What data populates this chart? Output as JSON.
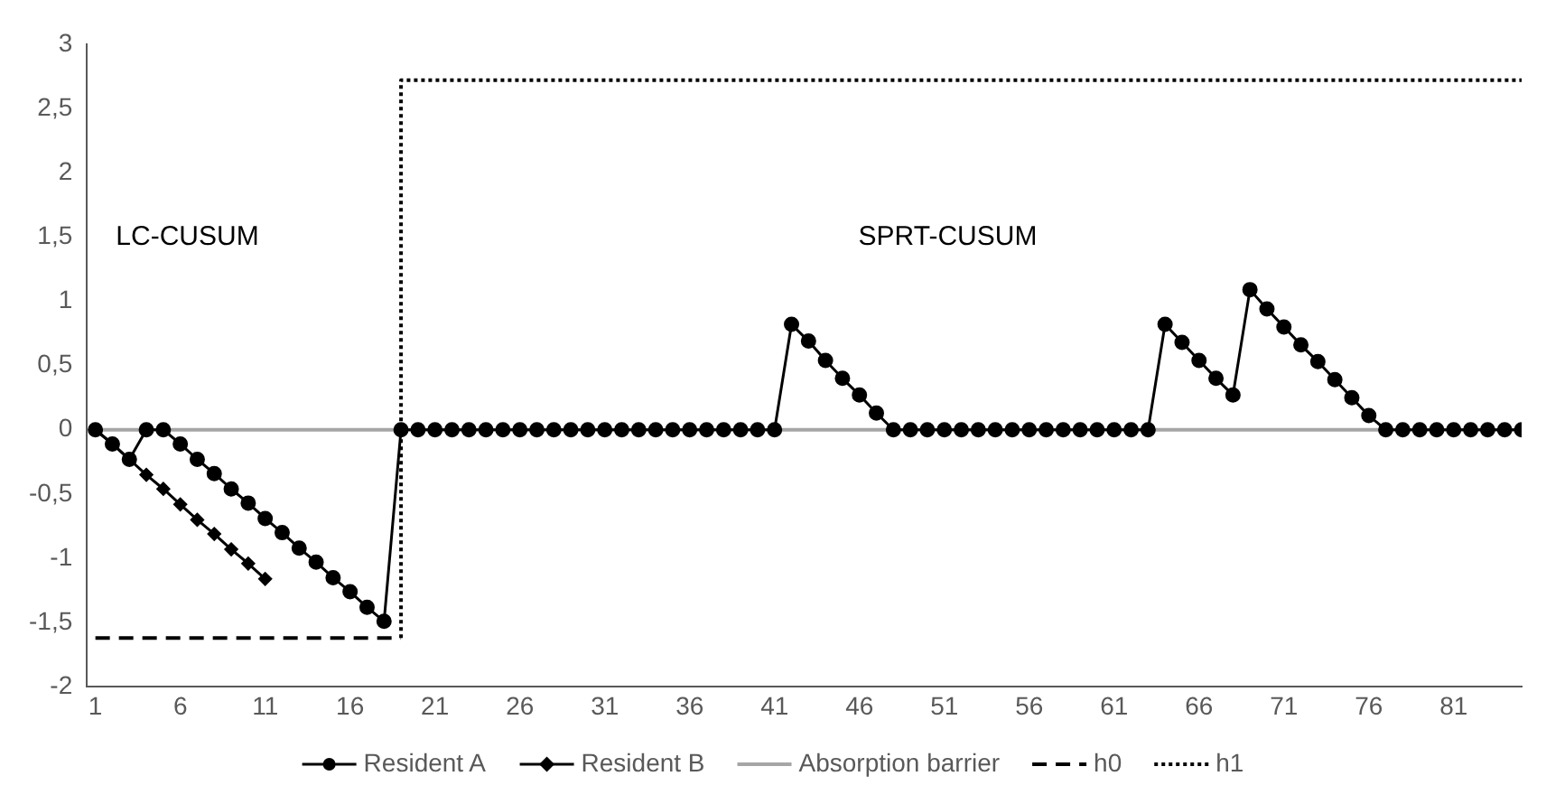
{
  "chart_data": {
    "type": "line",
    "x": [
      1,
      2,
      3,
      4,
      5,
      6,
      7,
      8,
      9,
      10,
      11,
      12,
      13,
      14,
      15,
      16,
      17,
      18,
      19,
      20,
      21,
      22,
      23,
      24,
      25,
      26,
      27,
      28,
      29,
      30,
      31,
      32,
      33,
      34,
      35,
      36,
      37,
      38,
      39,
      40,
      41,
      42,
      43,
      44,
      45,
      46,
      47,
      48,
      49,
      50,
      51,
      52,
      53,
      54,
      55,
      56,
      57,
      58,
      59,
      60,
      61,
      62,
      63,
      64,
      65,
      66,
      67,
      68,
      69,
      70,
      71,
      72,
      73,
      74,
      75,
      76,
      77,
      78,
      79,
      80,
      81,
      82,
      83,
      84,
      85
    ],
    "series": [
      {
        "name": "Resident A",
        "color": "#000000",
        "marker": "circle",
        "line_style": "solid",
        "values": [
          0,
          -0.11,
          -0.23,
          0,
          0,
          -0.11,
          -0.23,
          -0.34,
          -0.46,
          -0.57,
          -0.69,
          -0.8,
          -0.92,
          -1.03,
          -1.15,
          -1.26,
          -1.38,
          -1.49,
          0,
          0,
          0,
          0,
          0,
          0,
          0,
          0,
          0,
          0,
          0,
          0,
          0,
          0,
          0,
          0,
          0,
          0,
          0,
          0,
          0,
          0,
          0,
          0.82,
          0.69,
          0.54,
          0.4,
          0.27,
          0.13,
          0,
          0,
          0,
          0,
          0,
          0,
          0,
          0,
          0,
          0,
          0,
          0,
          0,
          0,
          0,
          0,
          0.82,
          0.68,
          0.54,
          0.4,
          0.27,
          1.09,
          0.94,
          0.8,
          0.66,
          0.53,
          0.39,
          0.25,
          0.11,
          0,
          0,
          0,
          0,
          0,
          0,
          0,
          0,
          0
        ]
      },
      {
        "name": "Resident B",
        "color": "#000000",
        "marker": "diamond",
        "line_style": "solid",
        "x": [
          1,
          2,
          3,
          4,
          5,
          6,
          7,
          8,
          9,
          10,
          11
        ],
        "values": [
          0,
          -0.11,
          -0.23,
          -0.35,
          -0.46,
          -0.58,
          -0.7,
          -0.81,
          -0.93,
          -1.04,
          -1.16
        ]
      },
      {
        "name": "Absorption barrier",
        "color": "#a6a6a6",
        "marker": "none",
        "line_style": "solid",
        "x": [
          1,
          85
        ],
        "values": [
          0,
          0
        ]
      },
      {
        "name": "h0",
        "color": "#000000",
        "marker": "none",
        "line_style": "dashed",
        "x": [
          1,
          19
        ],
        "values": [
          -1.62,
          -1.62
        ]
      },
      {
        "name": "h1",
        "color": "#000000",
        "marker": "none",
        "line_style": "dotted",
        "x": [
          19,
          19,
          85
        ],
        "values": [
          -1.62,
          2.72,
          2.72
        ]
      }
    ],
    "xlim": [
      0.5,
      85
    ],
    "xticks": [
      1,
      6,
      11,
      16,
      21,
      26,
      31,
      36,
      41,
      46,
      51,
      56,
      61,
      66,
      71,
      76,
      81
    ],
    "ylim": [
      -2,
      3
    ],
    "yticks": [
      -2,
      {
        "value": -1.5,
        "label": "-1,5"
      },
      -1,
      {
        "value": -0.5,
        "label": "-0,5"
      },
      0,
      {
        "value": 0.5,
        "label": "0,5"
      },
      1,
      {
        "value": 1.5,
        "label": "1,5"
      },
      2,
      {
        "value": 2.5,
        "label": "2,5"
      },
      3
    ],
    "annotations": [
      "LC-CUSUM",
      "SPRT-CUSUM"
    ],
    "grid": false,
    "legend": "bottom"
  }
}
